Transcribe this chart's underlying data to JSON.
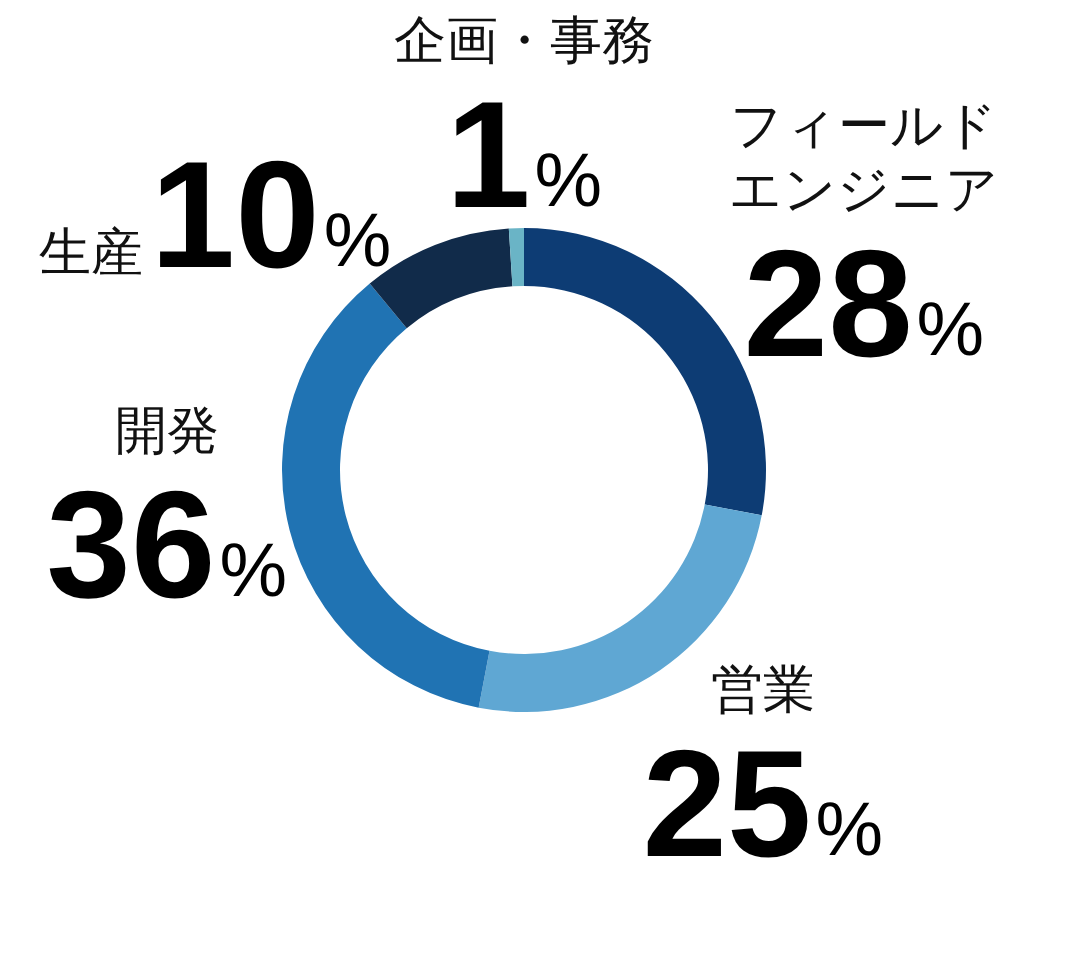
{
  "chart_data": {
    "type": "donut",
    "categories": [
      "フィールドエンジニア",
      "営業",
      "開発",
      "生産",
      "企画・事務"
    ],
    "values": [
      28,
      25,
      36,
      10,
      1
    ],
    "colors": [
      "#0d3c74",
      "#5fa7d3",
      "#2073b3",
      "#112b4a",
      "#6ab4c6"
    ],
    "value_labels": [
      "28%",
      "25%",
      "36%",
      "10%",
      "1%"
    ]
  }
}
